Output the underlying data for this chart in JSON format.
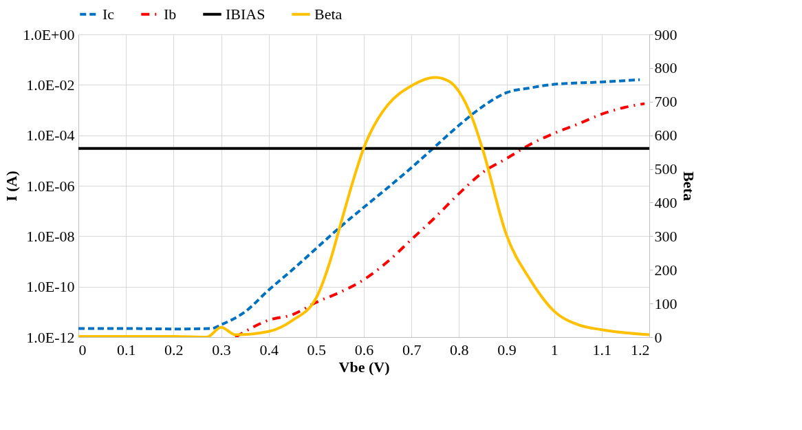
{
  "chart_data": {
    "type": "line",
    "xlabel": "Vbe (V)",
    "ylabel": "I (A)",
    "y2label": "Beta",
    "log": "y",
    "grid": true,
    "legend": "top",
    "xlim": [
      0,
      1.2
    ],
    "xticks": [
      0,
      0.1,
      0.2,
      0.3,
      0.4,
      0.5,
      0.6,
      0.7,
      0.8,
      0.9,
      1,
      1.1,
      1.2
    ],
    "ylim": [
      1e-12,
      1
    ],
    "yticks": [
      {
        "value": 1e-12,
        "label": "1.0E-12"
      },
      {
        "value": 1e-10,
        "label": "1.0E-10"
      },
      {
        "value": 1e-08,
        "label": "1.0E-08"
      },
      {
        "value": 1e-06,
        "label": "1.0E-06"
      },
      {
        "value": 0.0001,
        "label": "1.0E-04"
      },
      {
        "value": 0.01,
        "label": "1.0E-02"
      },
      {
        "value": 1,
        "label": "1.0E+00"
      }
    ],
    "y2lim": [
      0,
      900
    ],
    "y2ticks": [
      0,
      100,
      200,
      300,
      400,
      500,
      600,
      700,
      800,
      900
    ],
    "series": [
      {
        "name": "Ic",
        "color": "#0070c0",
        "line_style": "dashed",
        "x": [
          0,
          0.1,
          0.2,
          0.28,
          0.3,
          0.35,
          0.4,
          0.45,
          0.5,
          0.55,
          0.6,
          0.65,
          0.7,
          0.75,
          0.8,
          0.85,
          0.9,
          0.95,
          1,
          1.1,
          1.18
        ],
        "values": [
          2.2e-12,
          2.2e-12,
          2.1e-12,
          2.2e-12,
          3.1e-12,
          1e-11,
          7.4e-11,
          4.7e-10,
          3.3e-09,
          2.3e-08,
          1.4e-07,
          8.3e-07,
          5.2e-06,
          3.6e-05,
          0.00025,
          0.0014,
          0.0049,
          0.0076,
          0.0105,
          0.013,
          0.016
        ]
      },
      {
        "name": "Ib",
        "color": "#ff0000",
        "line_style": "dashdot",
        "x": [
          0.33,
          0.4,
          0.45,
          0.5,
          0.55,
          0.6,
          0.65,
          0.7,
          0.75,
          0.8,
          0.85,
          0.9,
          0.95,
          1,
          1.05,
          1.1,
          1.15,
          1.19
        ],
        "values": [
          1e-12,
          4.7e-12,
          7.8e-12,
          2.4e-11,
          6e-11,
          1.9e-10,
          9.8e-10,
          7.4e-09,
          5.6e-08,
          4.9e-07,
          3.4e-06,
          1.2e-05,
          4.4e-05,
          0.00012,
          0.00028,
          0.00069,
          0.0013,
          0.0018
        ]
      },
      {
        "name": "IBIAS",
        "color": "#000000",
        "line_style": "solid",
        "x": [
          0,
          1.2
        ],
        "values": [
          3e-05,
          3e-05
        ]
      },
      {
        "name": "Beta",
        "color": "#ffc000",
        "line_style": "solid",
        "axis": "y2",
        "x": [
          0,
          0.1,
          0.2,
          0.27,
          0.3,
          0.33,
          0.4,
          0.45,
          0.5,
          0.53,
          0.55,
          0.58,
          0.6,
          0.63,
          0.65,
          0.7,
          0.75,
          0.78,
          0.8,
          0.83,
          0.85,
          0.9,
          0.95,
          1,
          1.05,
          1.1,
          1.2
        ],
        "values": [
          2,
          2,
          2,
          0,
          29,
          7,
          17,
          50,
          117,
          230,
          330,
          477,
          563,
          650,
          690,
          747,
          772,
          760,
          730,
          643,
          557,
          303,
          170,
          77,
          37,
          22,
          7
        ]
      }
    ]
  }
}
